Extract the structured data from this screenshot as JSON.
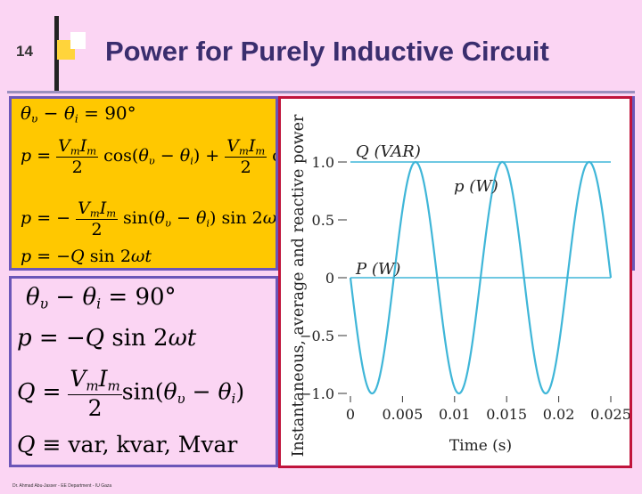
{
  "slide": {
    "number": "14",
    "title": "Power for Purely Inductive Circuit",
    "footer": "Dr. Ahmad Abu-Jasser - EE Department - IU Gaza"
  },
  "colors": {
    "background": "#fbd5f3",
    "equation_box": "#ffc800",
    "box_border": "#6b56b8",
    "chart_border": "#c0143c",
    "curve": "#3fb6d8",
    "title": "#3a2e6e"
  },
  "chart_data": {
    "type": "line",
    "xlabel": "Time (s)",
    "ylabel": "Instantaneous, average and reactive power",
    "xlim": [
      0,
      0.025
    ],
    "ylim": [
      -1.0,
      1.0
    ],
    "x_ticks": [
      "0",
      "0.005",
      "0.01",
      "0.015",
      "0.02",
      "0.025"
    ],
    "y_ticks": [
      "1.0",
      "0.5",
      "0",
      "−0.5",
      "−1.0"
    ],
    "series": [
      {
        "name": "p (W)",
        "function": "p = -sin(2*pi*120*t)",
        "frequency_hz": 120,
        "amplitude": 1.0
      },
      {
        "name": "Q (VAR)",
        "constant": 1.0
      },
      {
        "name": "P (W)",
        "constant": 0
      }
    ]
  }
}
